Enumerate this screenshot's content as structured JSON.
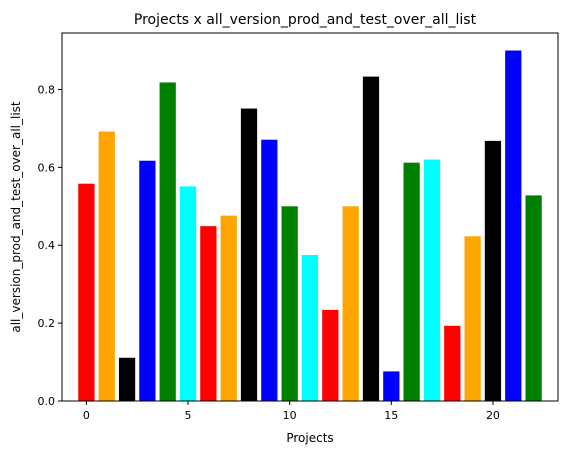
{
  "chart_data": {
    "type": "bar",
    "title": "Projects x all_version_prod_and_test_over_all_list",
    "xlabel": "Projects",
    "ylabel": "all_version_prod_and_test_over_all_list",
    "x": [
      0,
      1,
      2,
      3,
      4,
      5,
      6,
      7,
      8,
      9,
      10,
      11,
      12,
      13,
      14,
      15,
      16,
      17,
      18,
      19,
      20,
      21,
      22
    ],
    "values": [
      0.558,
      0.692,
      0.111,
      0.617,
      0.818,
      0.551,
      0.449,
      0.476,
      0.751,
      0.671,
      0.5,
      0.375,
      0.234,
      0.5,
      0.833,
      0.076,
      0.612,
      0.62,
      0.193,
      0.423,
      0.668,
      0.9,
      0.528
    ],
    "colors": [
      "#ff0000",
      "#ffa500",
      "#000000",
      "#0000ff",
      "#008000",
      "#00ffff",
      "#ff0000",
      "#ffa500",
      "#000000",
      "#0000ff",
      "#008000",
      "#00ffff",
      "#ff0000",
      "#ffa500",
      "#000000",
      "#0000ff",
      "#008000",
      "#00ffff",
      "#ff0000",
      "#ffa500",
      "#000000",
      "#0000ff",
      "#008000"
    ],
    "xlim": [
      -1.2,
      23.2
    ],
    "ylim": [
      0,
      0.945
    ],
    "xticks": [
      0,
      5,
      10,
      15,
      20
    ],
    "xtick_labels": [
      "0",
      "5",
      "10",
      "15",
      "20"
    ],
    "yticks": [
      0.0,
      0.2,
      0.4,
      0.6,
      0.8
    ],
    "ytick_labels": [
      "0.0",
      "0.2",
      "0.4",
      "0.6",
      "0.8"
    ],
    "grid": false,
    "legend": "none"
  }
}
